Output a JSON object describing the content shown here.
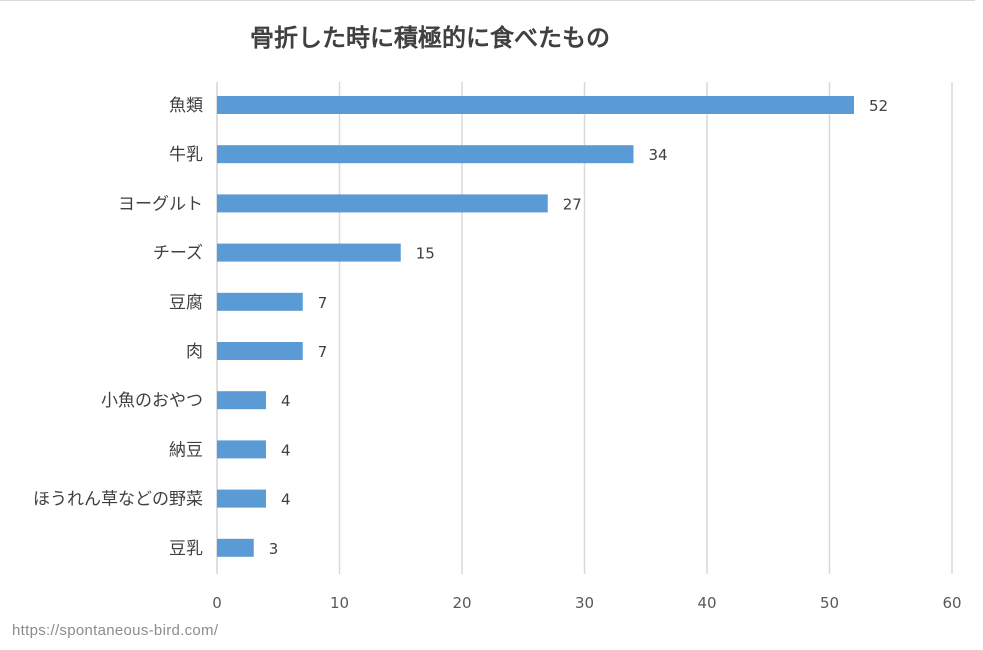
{
  "chart_data": {
    "type": "bar",
    "orientation": "horizontal",
    "title": "骨折した時に積極的に食べたもの",
    "categories": [
      "魚類",
      "牛乳",
      "ヨーグルト",
      "チーズ",
      "豆腐",
      "肉",
      "小魚のおやつ",
      "納豆",
      "ほうれん草などの野菜",
      "豆乳"
    ],
    "values": [
      52,
      34,
      27,
      15,
      7,
      7,
      4,
      4,
      4,
      3
    ],
    "xlim": [
      0,
      60
    ],
    "xticks": [
      0,
      10,
      20,
      30,
      40,
      50,
      60
    ],
    "xlabel": "",
    "ylabel": "",
    "grid": "vertical",
    "legend": "none",
    "data_labels": true,
    "bar_color": "#5b9bd5"
  },
  "watermark": "https://spontaneous-bird.com/"
}
